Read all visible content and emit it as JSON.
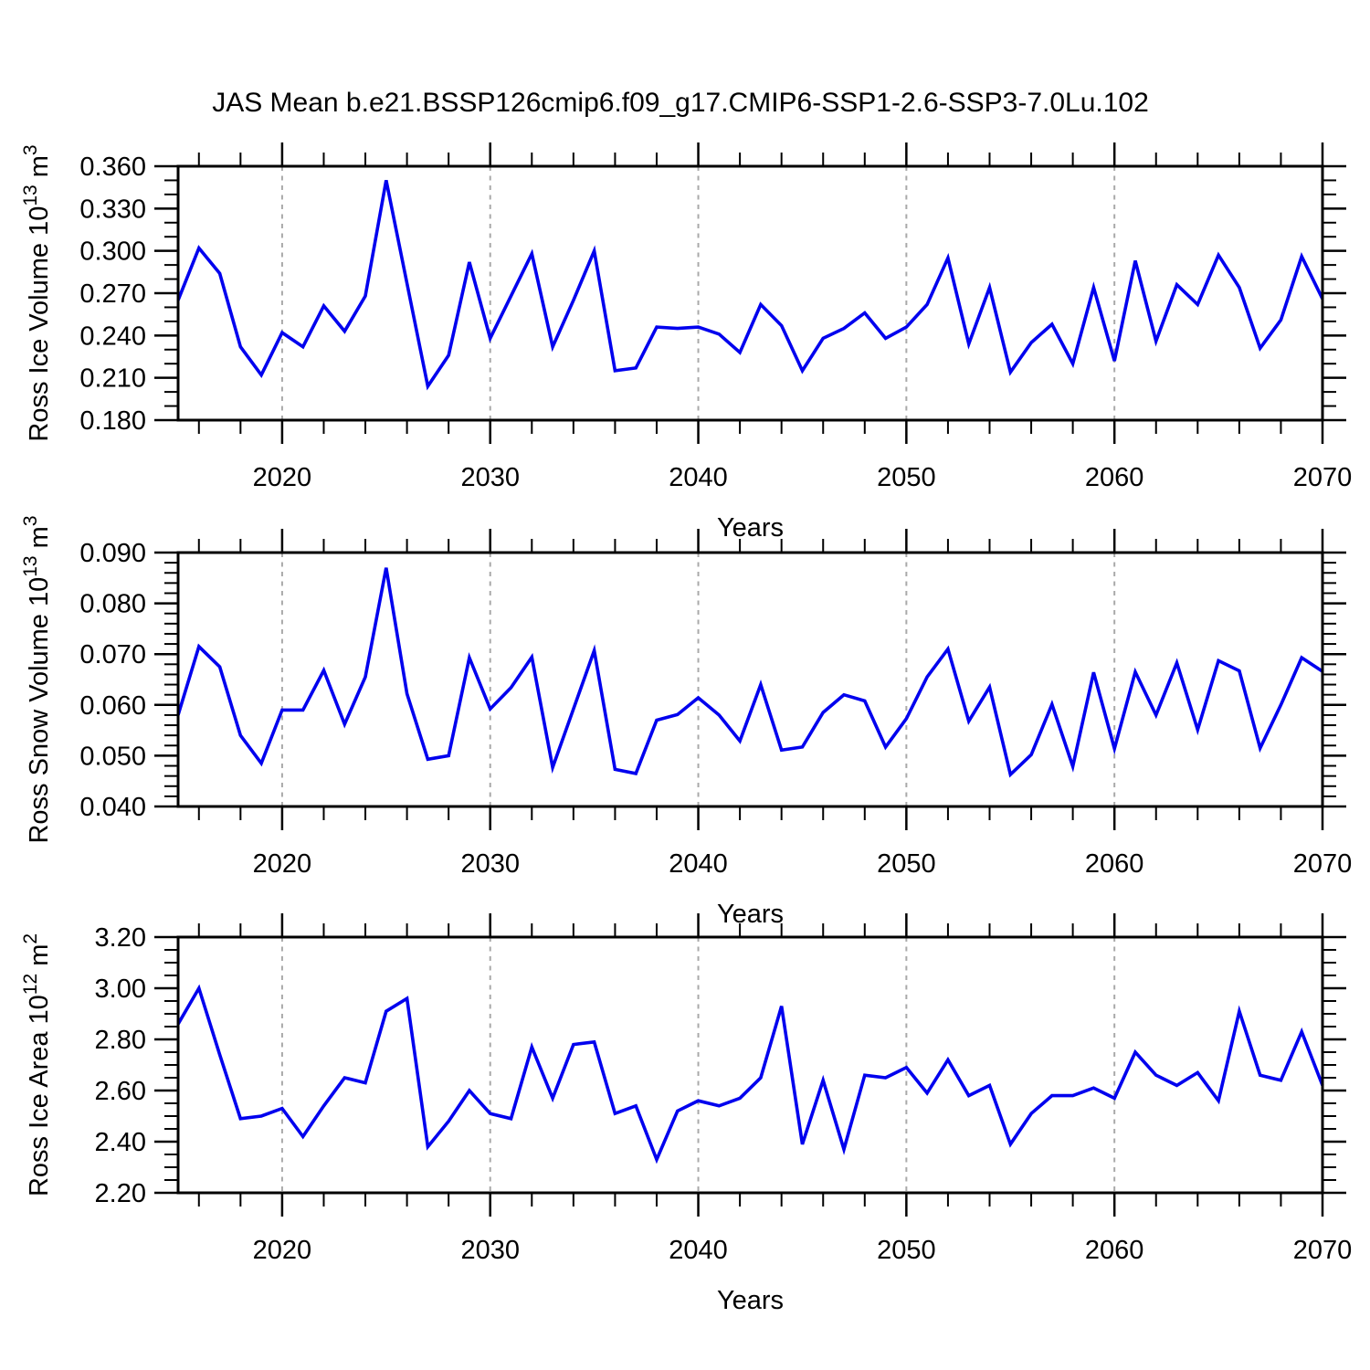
{
  "title": "JAS Mean b.e21.BSSP126cmip6.f09_g17.CMIP6-SSP1-2.6-SSP3-7.0Lu.102",
  "colors": {
    "line": "#0000EE",
    "grid": "#A9A9A9",
    "axis": "#000000",
    "background": "#FFFFFF"
  },
  "years": [
    2015,
    2016,
    2017,
    2018,
    2019,
    2020,
    2021,
    2022,
    2023,
    2024,
    2025,
    2026,
    2027,
    2028,
    2029,
    2030,
    2031,
    2032,
    2033,
    2034,
    2035,
    2036,
    2037,
    2038,
    2039,
    2040,
    2041,
    2042,
    2043,
    2044,
    2045,
    2046,
    2047,
    2048,
    2049,
    2050,
    2051,
    2052,
    2053,
    2054,
    2055,
    2056,
    2057,
    2058,
    2059,
    2060,
    2061,
    2062,
    2063,
    2064,
    2065,
    2066,
    2067,
    2068,
    2069,
    2070
  ],
  "chart_data": [
    {
      "id": "ross-ice-volume",
      "type": "line",
      "ylabel": "Ross Ice Volume 10^13 m^3",
      "xlabel": "Years",
      "ylim": [
        0.18,
        0.36
      ],
      "ytick_values": [
        0.18,
        0.21,
        0.24,
        0.27,
        0.3,
        0.33,
        0.36
      ],
      "ytick_labels": [
        "0.180",
        "0.210",
        "0.240",
        "0.270",
        "0.300",
        "0.330",
        "0.360"
      ],
      "y_minor_step": 0.01,
      "xlim": [
        2015,
        2070
      ],
      "xtick_values": [
        2020,
        2030,
        2040,
        2050,
        2060,
        2070
      ],
      "xtick_labels": [
        "2020",
        "2030",
        "2040",
        "2050",
        "2060",
        "2070"
      ],
      "x_minor_step": 2,
      "grid_years": [
        2020,
        2030,
        2040,
        2050,
        2060
      ],
      "x_start": 2015,
      "values": [
        0.265,
        0.302,
        0.284,
        0.232,
        0.212,
        0.242,
        0.232,
        0.261,
        0.243,
        0.268,
        0.35,
        0.277,
        0.204,
        0.226,
        0.292,
        0.238,
        0.268,
        0.298,
        0.232,
        0.265,
        0.3,
        0.215,
        0.217,
        0.246,
        0.245,
        0.246,
        0.241,
        0.228,
        0.262,
        0.247,
        0.215,
        0.238,
        0.245,
        0.256,
        0.238,
        0.246,
        0.262,
        0.295,
        0.234,
        0.274,
        0.214,
        0.235,
        0.248,
        0.22,
        0.274,
        0.222,
        0.293,
        0.236,
        0.276,
        0.262,
        0.297,
        0.274,
        0.231,
        0.251,
        0.296,
        0.266
      ]
    },
    {
      "id": "ross-snow-volume",
      "type": "line",
      "ylabel": "Ross Snow Volume 10^13 m^3",
      "xlabel": "Years",
      "ylim": [
        0.04,
        0.09
      ],
      "ytick_values": [
        0.04,
        0.05,
        0.06,
        0.07,
        0.08,
        0.09
      ],
      "ytick_labels": [
        "0.040",
        "0.050",
        "0.060",
        "0.070",
        "0.080",
        "0.090"
      ],
      "y_minor_step": 0.002,
      "xlim": [
        2015,
        2070
      ],
      "xtick_values": [
        2020,
        2030,
        2040,
        2050,
        2060,
        2070
      ],
      "xtick_labels": [
        "2020",
        "2030",
        "2040",
        "2050",
        "2060",
        "2070"
      ],
      "x_minor_step": 2,
      "grid_years": [
        2020,
        2030,
        2040,
        2050,
        2060
      ],
      "x_start": 2015,
      "values": [
        0.058,
        0.0715,
        0.0675,
        0.054,
        0.0485,
        0.059,
        0.059,
        0.0668,
        0.0562,
        0.0655,
        0.087,
        0.0622,
        0.0493,
        0.05,
        0.0693,
        0.0592,
        0.0634,
        0.0694,
        0.0477,
        0.0592,
        0.0707,
        0.0473,
        0.0465,
        0.057,
        0.0581,
        0.0614,
        0.058,
        0.0529,
        0.064,
        0.0511,
        0.0517,
        0.0585,
        0.062,
        0.0608,
        0.0517,
        0.0573,
        0.0655,
        0.071,
        0.0568,
        0.0635,
        0.0463,
        0.0502,
        0.0601,
        0.0479,
        0.0664,
        0.0514,
        0.0665,
        0.058,
        0.0683,
        0.0551,
        0.0687,
        0.0667,
        0.0515,
        0.06,
        0.0693,
        0.0666
      ]
    },
    {
      "id": "ross-ice-area",
      "type": "line",
      "ylabel": "Ross Ice Area 10^12 m^2",
      "xlabel": "Years",
      "ylim": [
        2.2,
        3.2
      ],
      "ytick_values": [
        2.2,
        2.4,
        2.6,
        2.8,
        3.0,
        3.2
      ],
      "ytick_labels": [
        "2.20",
        "2.40",
        "2.60",
        "2.80",
        "3.00",
        "3.20"
      ],
      "y_minor_step": 0.05,
      "xlim": [
        2015,
        2070
      ],
      "xtick_values": [
        2020,
        2030,
        2040,
        2050,
        2060,
        2070
      ],
      "xtick_labels": [
        "2020",
        "2030",
        "2040",
        "2050",
        "2060",
        "2070"
      ],
      "x_minor_step": 2,
      "grid_years": [
        2020,
        2030,
        2040,
        2050,
        2060
      ],
      "x_start": 2015,
      "values": [
        2.86,
        3.0,
        2.74,
        2.49,
        2.5,
        2.53,
        2.42,
        2.54,
        2.65,
        2.63,
        2.91,
        2.96,
        2.38,
        2.48,
        2.6,
        2.51,
        2.49,
        2.77,
        2.57,
        2.78,
        2.79,
        2.51,
        2.54,
        2.33,
        2.52,
        2.56,
        2.54,
        2.57,
        2.65,
        2.93,
        2.39,
        2.64,
        2.37,
        2.66,
        2.65,
        2.69,
        2.59,
        2.72,
        2.58,
        2.62,
        2.39,
        2.51,
        2.58,
        2.58,
        2.61,
        2.57,
        2.75,
        2.66,
        2.62,
        2.67,
        2.56,
        2.91,
        2.66,
        2.64,
        2.83,
        2.62
      ]
    }
  ]
}
